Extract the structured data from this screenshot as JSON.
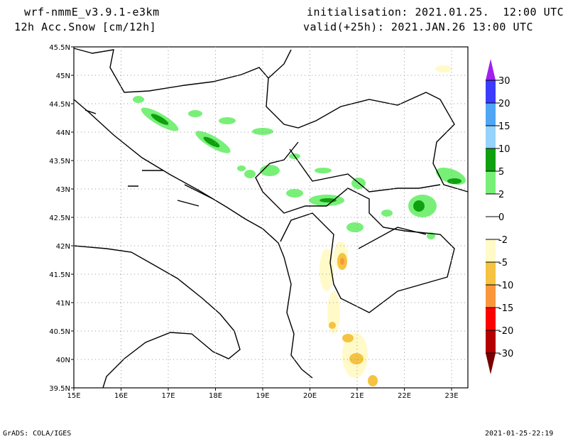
{
  "header": {
    "model": "wrf-nmmE_v3.9.1-e3km",
    "variable": "12h Acc.Snow [cm/12h]",
    "init": "initialisation: 2021.01.25.  12:00 UTC",
    "valid": "valid(+25h): 2021.JAN.26 13:00 UTC"
  },
  "footer": {
    "left": "GrADS: COLA/IGES",
    "right": "2021-01-25-22:19"
  },
  "axes": {
    "lat_labels": [
      "45.5N",
      "45N",
      "44.5N",
      "44N",
      "43.5N",
      "43N",
      "42.5N",
      "42N",
      "41.5N",
      "41N",
      "40.5N",
      "40N",
      "39.5N"
    ],
    "lon_labels": [
      "15E",
      "16E",
      "17E",
      "18E",
      "19E",
      "20E",
      "21E",
      "22E",
      "23E"
    ]
  },
  "colorbar": {
    "labels": [
      "30",
      "20",
      "15",
      "10",
      "5",
      "2",
      "0",
      "-2",
      "-5",
      "-10",
      "-15",
      "-20",
      "-30"
    ],
    "colors": [
      "#a020f0",
      "#3c3cff",
      "#50a5f5",
      "#96d2fa",
      "#0fa00f",
      "#78f078",
      "#ffffff",
      "#ffffff",
      "#fffac8",
      "#f5c341",
      "#fa963c",
      "#ff0000",
      "#b40000",
      "#780000"
    ]
  }
}
